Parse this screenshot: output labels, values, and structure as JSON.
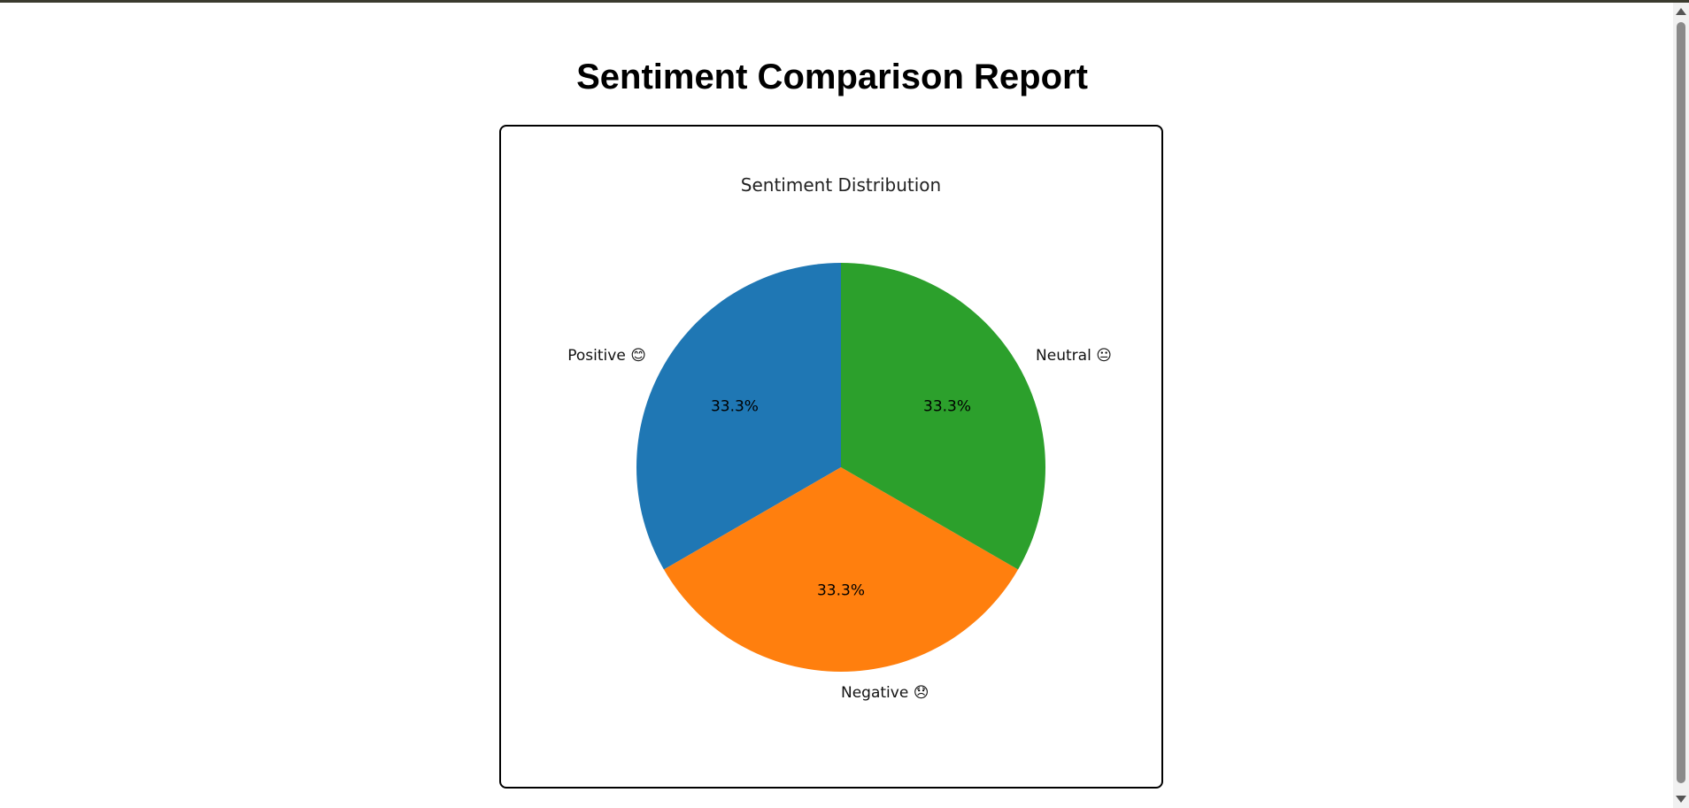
{
  "page": {
    "title": "Sentiment Comparison Report"
  },
  "chart_data": {
    "type": "pie",
    "title": "Sentiment Distribution",
    "categories": [
      "Positive 😊",
      "Negative 😞",
      "Neutral 😐"
    ],
    "values": [
      33.3,
      33.3,
      33.3
    ],
    "labels": [
      "33.3%",
      "33.3%",
      "33.3%"
    ],
    "colors": [
      "#1f77b4",
      "#ff7f0e",
      "#2ca02c"
    ],
    "start_angle_deg": 90,
    "direction": "counterclockwise",
    "legend": "none"
  }
}
